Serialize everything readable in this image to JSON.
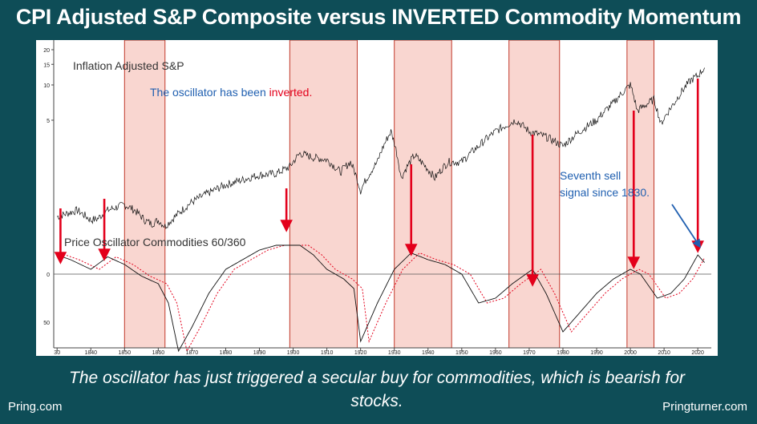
{
  "title": "CPI Adjusted S&P Composite versus INVERTED Commodity Momentum",
  "caption": "The oscillator has just triggered a secular buy for commodities, which is bearish for stocks.",
  "footer": {
    "left": "Pring.com",
    "right": "Pringturner.com"
  },
  "colors": {
    "background": "#0e4d57",
    "shade": "#f8cfc8",
    "shade_border": "#c0392b",
    "arrow": "#e3001b",
    "blue_text": "#1f5fb0",
    "oscillator_ma": "#e3001b"
  },
  "chart_data": {
    "type": "line",
    "annotations": {
      "upper_label": "Inflation Adjusted S&P",
      "note_prefix": "The oscillator has been ",
      "note_highlight": "inverted.",
      "lower_label": "Price Oscillator Commodities 60/360",
      "seventh_line1": "Seventh sell",
      "seventh_line2": "signal since 1830."
    },
    "x_ticks": [
      "30",
      "1840",
      "1850",
      "1860",
      "1870",
      "1880",
      "1890",
      "1900",
      "1910",
      "1920",
      "1930",
      "1940",
      "1950",
      "1960",
      "1970",
      "1980",
      "1990",
      "2000",
      "2010",
      "2020"
    ],
    "y_ticks_upper": [
      "20",
      "15",
      "10",
      "5"
    ],
    "y_ticks_lower": [
      "0",
      "50"
    ],
    "shaded_periods": [
      [
        1850,
        1862
      ],
      [
        1899,
        1919
      ],
      [
        1930,
        1947
      ],
      [
        1964,
        1979
      ],
      [
        1999,
        2007
      ]
    ],
    "sell_signals": [
      1831,
      1844,
      1898,
      1935,
      1971,
      2001,
      2020
    ],
    "series": [
      {
        "name": "Inflation Adjusted S&P",
        "log_scale": true,
        "x": [
          1830,
          1836,
          1840,
          1842,
          1845,
          1850,
          1853,
          1856,
          1858,
          1860,
          1862,
          1865,
          1870,
          1875,
          1880,
          1885,
          1890,
          1895,
          1899,
          1902,
          1906,
          1910,
          1914,
          1917,
          1920,
          1925,
          1929,
          1932,
          1936,
          1942,
          1946,
          1950,
          1955,
          1960,
          1966,
          1970,
          1975,
          1980,
          1985,
          1990,
          1995,
          2000,
          2002,
          2007,
          2009,
          2013,
          2018,
          2020,
          2022
        ],
        "y": [
          0.75,
          0.85,
          0.7,
          0.72,
          0.85,
          0.95,
          0.85,
          0.7,
          0.65,
          0.7,
          0.62,
          0.75,
          1.0,
          1.2,
          1.4,
          1.55,
          1.7,
          1.75,
          2.0,
          2.6,
          2.4,
          2.3,
          1.8,
          2.2,
          1.25,
          2.2,
          4.0,
          1.6,
          2.5,
          1.6,
          2.2,
          2.2,
          3.0,
          4.0,
          5.0,
          4.0,
          3.6,
          3.0,
          4.0,
          5.0,
          7.0,
          10.0,
          6.0,
          7.5,
          4.6,
          7.0,
          11.0,
          12.0,
          14.0
        ]
      },
      {
        "name": "Price Oscillator Commodities 60/360",
        "x": [
          1830,
          1834,
          1840,
          1845,
          1850,
          1855,
          1860,
          1863,
          1866,
          1870,
          1875,
          1880,
          1885,
          1890,
          1895,
          1899,
          1902,
          1906,
          1910,
          1915,
          1918,
          1920,
          1925,
          1930,
          1935,
          1940,
          1945,
          1950,
          1955,
          1960,
          1965,
          1971,
          1975,
          1980,
          1985,
          1990,
          1995,
          2000,
          2003,
          2008,
          2012,
          2016,
          2020,
          2022
        ],
        "y": [
          20,
          15,
          5,
          18,
          10,
          -2,
          -10,
          -30,
          -80,
          -55,
          -20,
          5,
          15,
          25,
          30,
          30,
          30,
          20,
          5,
          -5,
          -15,
          -70,
          -30,
          5,
          22,
          15,
          10,
          0,
          -30,
          -25,
          -10,
          5,
          -20,
          -60,
          -40,
          -20,
          -5,
          5,
          0,
          -25,
          -20,
          -5,
          20,
          12
        ]
      }
    ]
  }
}
